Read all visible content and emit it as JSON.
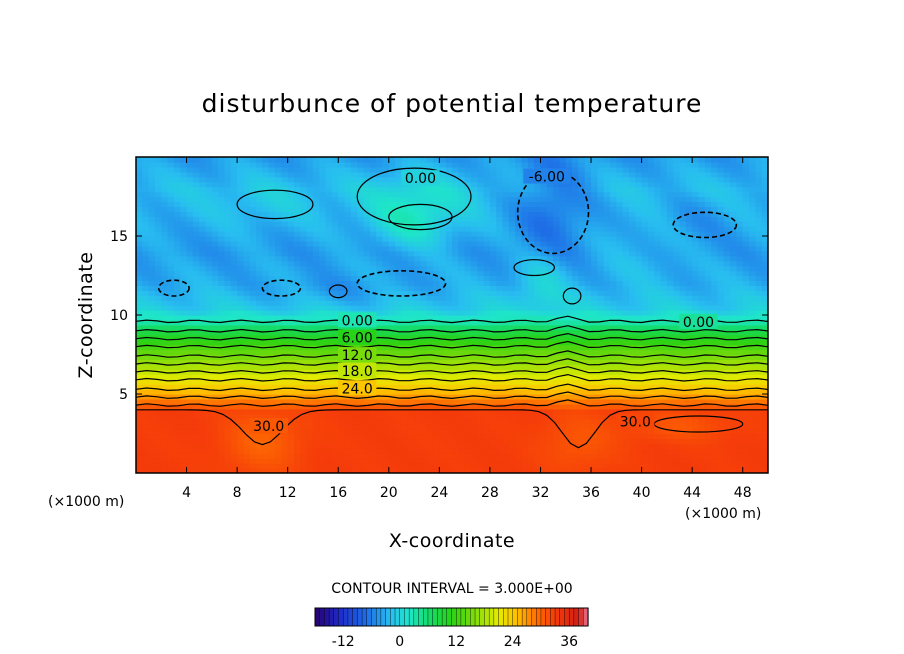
{
  "chart_data": {
    "type": "heatmap",
    "title": "disturbunce of potential temperature",
    "xlabel": "X-coordinate",
    "ylabel": "Z-coordinate",
    "x_unit": "(×1000 m)",
    "y_unit": "(×1000 m)",
    "xlim": [
      0,
      50
    ],
    "ylim": [
      0,
      20
    ],
    "x_ticks": [
      4,
      8,
      12,
      16,
      20,
      24,
      28,
      32,
      36,
      40,
      44,
      48
    ],
    "y_ticks": [
      5,
      10,
      15
    ],
    "contour_interval_text": "CONTOUR INTERVAL = 3.000E+00",
    "contour_labels": [
      {
        "text": "0.00",
        "x": 22.5,
        "z": 18.6
      },
      {
        "text": "-6.00",
        "x": 32.5,
        "z": 18.7
      },
      {
        "text": "0.00",
        "x": 44.5,
        "z": 9.5
      },
      {
        "text": "0.00",
        "x": 17.5,
        "z": 9.6
      },
      {
        "text": "6.00",
        "x": 17.5,
        "z": 8.5
      },
      {
        "text": "12.0",
        "x": 17.5,
        "z": 7.4
      },
      {
        "text": "18.0",
        "x": 17.5,
        "z": 6.4
      },
      {
        "text": "24.0",
        "x": 17.5,
        "z": 5.3
      },
      {
        "text": "30.0",
        "x": 10.5,
        "z": 2.9
      },
      {
        "text": "30.0",
        "x": 39.5,
        "z": 3.2
      }
    ],
    "colorbar": {
      "min": -18,
      "max": 40,
      "ticks": [
        "-12",
        "0",
        "12",
        "24",
        "36"
      ],
      "tick_values": [
        -12,
        0,
        12,
        24,
        36
      ]
    },
    "field_profile": {
      "z": [
        0,
        4,
        4.3,
        5,
        6,
        7,
        8,
        9,
        9.6,
        10.5,
        12,
        14,
        16,
        18,
        20
      ],
      "theta": [
        33,
        33,
        30,
        26,
        21,
        17,
        13,
        8,
        3,
        -1,
        -3,
        -4,
        -3,
        -2,
        -4
      ]
    }
  }
}
